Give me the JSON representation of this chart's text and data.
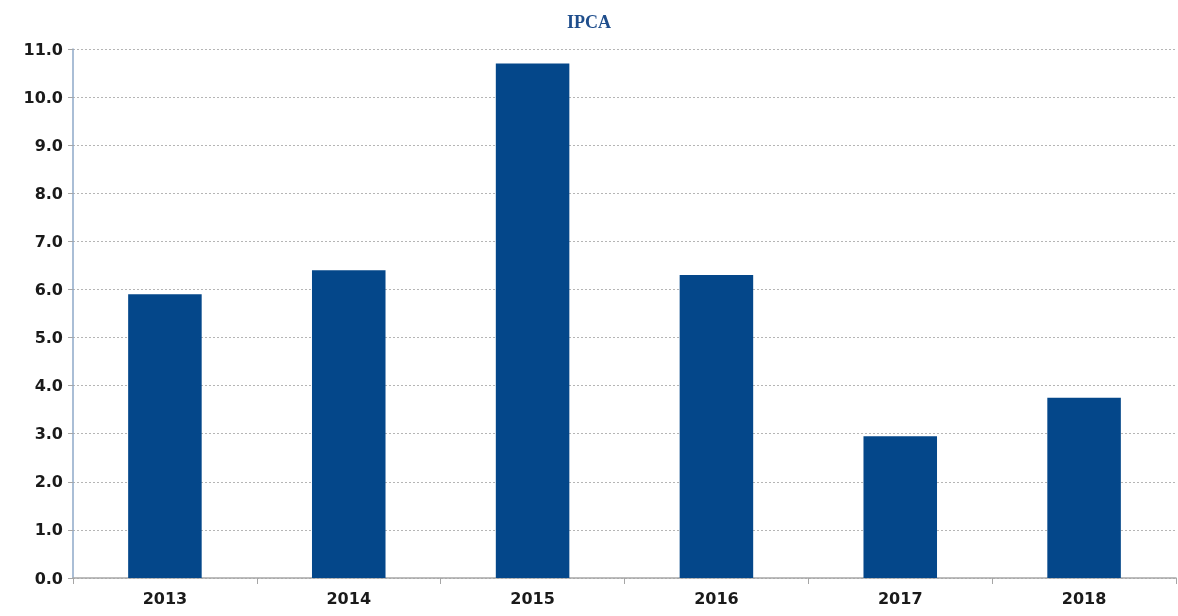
{
  "chart_data": {
    "type": "bar",
    "title": "IPCA",
    "categories": [
      "2013",
      "2014",
      "2015",
      "2016",
      "2017",
      "2018"
    ],
    "values": [
      5.9,
      6.4,
      10.7,
      6.3,
      2.95,
      3.75
    ],
    "color": "#04478a",
    "ylim": [
      0,
      11
    ],
    "yticks": [
      {
        "value": 0,
        "label": "0.0"
      },
      {
        "value": 1,
        "label": "1.0"
      },
      {
        "value": 2,
        "label": "2.0"
      },
      {
        "value": 3,
        "label": "3.0"
      },
      {
        "value": 4,
        "label": "4.0"
      },
      {
        "value": 5,
        "label": "5.0"
      },
      {
        "value": 6,
        "label": "6.0"
      },
      {
        "value": 7,
        "label": "7.0"
      },
      {
        "value": 8,
        "label": "8.0"
      },
      {
        "value": 9,
        "label": "9.0"
      },
      {
        "value": 10,
        "label": "10.0"
      },
      {
        "value": 11,
        "label": "11.0"
      }
    ],
    "grid": "y"
  }
}
